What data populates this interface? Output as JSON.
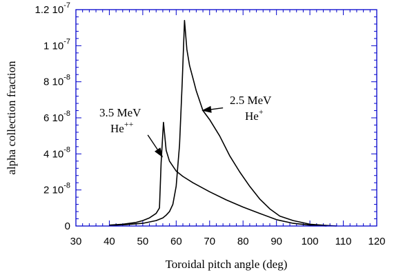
{
  "chart_data": {
    "type": "line",
    "title": "",
    "xlabel": "Toroidal pitch angle (deg)",
    "ylabel": "alpha collection fraction",
    "xlim": [
      30,
      120
    ],
    "ylim": [
      0,
      1.2e-07
    ],
    "x_ticks": [
      30,
      40,
      50,
      60,
      70,
      80,
      90,
      100,
      110,
      120
    ],
    "y_ticks": [
      {
        "value": 0,
        "mantissa": "0",
        "exponent": ""
      },
      {
        "value": 2e-08,
        "mantissa": "2 10",
        "exponent": "-8"
      },
      {
        "value": 4e-08,
        "mantissa": "4 10",
        "exponent": "-8"
      },
      {
        "value": 6e-08,
        "mantissa": "6 10",
        "exponent": "-8"
      },
      {
        "value": 8e-08,
        "mantissa": "8 10",
        "exponent": "-8"
      },
      {
        "value": 1e-07,
        "mantissa": "1 10",
        "exponent": "-7"
      },
      {
        "value": 1.2e-07,
        "mantissa": "1.2 10",
        "exponent": "-7"
      }
    ],
    "grid": false,
    "series": [
      {
        "label_lines": [
          {
            "text": "3.5 MeV",
            "sup": ""
          },
          {
            "text": "He",
            "sup": "++"
          }
        ],
        "x": [
          40,
          44,
          48,
          50,
          52,
          54,
          55,
          55.5,
          56.2,
          57,
          58,
          60,
          62,
          65,
          70,
          75,
          80,
          85,
          90,
          95,
          100,
          105
        ],
        "y": [
          5e-10,
          1e-09,
          2e-09,
          3e-09,
          4.5e-09,
          7e-09,
          1e-08,
          3.5e-08,
          5.75e-08,
          4.2e-08,
          3.6e-08,
          3.05e-08,
          2.75e-08,
          2.4e-08,
          1.9e-08,
          1.45e-08,
          1.05e-08,
          7e-09,
          3.5e-09,
          1.5e-09,
          5e-10,
          0.0
        ]
      },
      {
        "label_lines": [
          {
            "text": "2.5 MeV",
            "sup": ""
          },
          {
            "text": "He",
            "sup": "+"
          }
        ],
        "x": [
          40,
          45,
          50,
          54,
          56,
          57,
          58,
          59,
          60,
          61,
          61.8,
          62.5,
          63.2,
          64,
          65,
          66,
          68,
          70,
          73,
          76,
          79,
          82,
          85,
          88,
          91,
          95,
          100,
          105,
          108
        ],
        "y": [
          3e-10,
          8e-10,
          1.5e-09,
          3e-09,
          4.5e-09,
          6e-09,
          8e-09,
          1.2e-08,
          2.2e-08,
          4.5e-08,
          8e-08,
          1.14e-07,
          9.8e-08,
          8.9e-08,
          8.2e-08,
          7.5e-08,
          6.4e-08,
          5.9e-08,
          5e-08,
          3.9e-08,
          3e-08,
          2.2e-08,
          1.5e-08,
          9.5e-09,
          5.5e-09,
          3e-09,
          1e-09,
          3e-10,
          0.0
        ]
      }
    ],
    "annotations": [
      {
        "series": 0,
        "arrow_tail": [
          51.5,
          5.05e-08
        ],
        "arrow_head": [
          56.0,
          3.8e-08
        ]
      },
      {
        "series": 1,
        "arrow_tail": [
          74.0,
          6.55e-08
        ],
        "arrow_head": [
          67.6,
          6.4e-08
        ]
      }
    ]
  }
}
